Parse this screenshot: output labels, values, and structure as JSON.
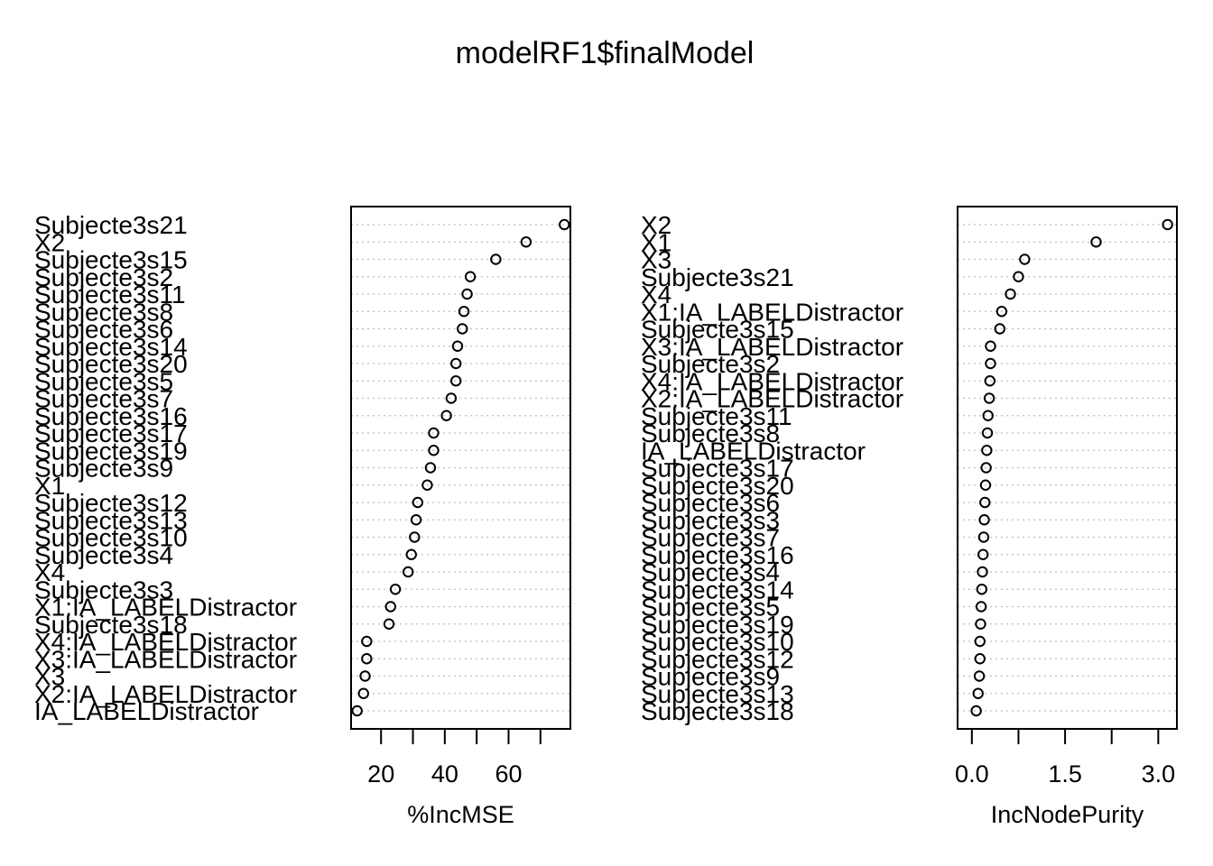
{
  "title": "modelRF1$finalModel",
  "chart_data": [
    {
      "type": "scatter",
      "variant": "dotchart",
      "xlabel": "%IncMSE",
      "xticks": [
        20,
        40,
        60
      ],
      "xlim": [
        10.6,
        79.4
      ],
      "grid": true,
      "points": [
        {
          "label": "Subjecte3s21",
          "value": 77.5
        },
        {
          "label": "X2",
          "value": 65.5
        },
        {
          "label": "Subjecte3s15",
          "value": 56.0
        },
        {
          "label": "Subjecte3s2",
          "value": 48.0
        },
        {
          "label": "Subjecte3s11",
          "value": 47.0
        },
        {
          "label": "Subjecte3s8",
          "value": 46.0
        },
        {
          "label": "Subjecte3s6",
          "value": 45.5
        },
        {
          "label": "Subjecte3s14",
          "value": 44.0
        },
        {
          "label": "Subjecte3s20",
          "value": 43.5
        },
        {
          "label": "Subjecte3s5",
          "value": 43.5
        },
        {
          "label": "Subjecte3s7",
          "value": 42.0
        },
        {
          "label": "Subjecte3s16",
          "value": 40.5
        },
        {
          "label": "Subjecte3s17",
          "value": 36.5
        },
        {
          "label": "Subjecte3s19",
          "value": 36.5
        },
        {
          "label": "Subjecte3s9",
          "value": 35.5
        },
        {
          "label": "X1",
          "value": 34.5
        },
        {
          "label": "Subjecte3s12",
          "value": 31.5
        },
        {
          "label": "Subjecte3s13",
          "value": 31.0
        },
        {
          "label": "Subjecte3s10",
          "value": 30.5
        },
        {
          "label": "Subjecte3s4",
          "value": 29.5
        },
        {
          "label": "X4",
          "value": 28.5
        },
        {
          "label": "Subjecte3s3",
          "value": 24.5
        },
        {
          "label": "X1:IA_LABELDistractor",
          "value": 23.0
        },
        {
          "label": "Subjecte3s18",
          "value": 22.5
        },
        {
          "label": "X4:IA_LABELDistractor",
          "value": 15.5
        },
        {
          "label": "X3:IA_LABELDistractor",
          "value": 15.5
        },
        {
          "label": "X3",
          "value": 15.0
        },
        {
          "label": "X2:IA_LABELDistractor",
          "value": 14.5
        },
        {
          "label": "IA_LABELDistractor",
          "value": 12.5
        }
      ]
    },
    {
      "type": "scatter",
      "variant": "dotchart",
      "xlabel": "IncNodePurity",
      "xticks": [
        "0.0",
        "1.5",
        "3.0"
      ],
      "xtick_values": [
        0,
        1.5,
        3
      ],
      "xlim": [
        -0.23,
        3.3
      ],
      "grid": true,
      "points": [
        {
          "label": "X2",
          "value": 3.15
        },
        {
          "label": "X1",
          "value": 2.0
        },
        {
          "label": "X3",
          "value": 0.85
        },
        {
          "label": "Subjecte3s21",
          "value": 0.75
        },
        {
          "label": "X4",
          "value": 0.62
        },
        {
          "label": "X1:IA_LABELDistractor",
          "value": 0.48
        },
        {
          "label": "Subjecte3s15",
          "value": 0.45
        },
        {
          "label": "X3:IA_LABELDistractor",
          "value": 0.3
        },
        {
          "label": "Subjecte3s2",
          "value": 0.3
        },
        {
          "label": "X4:IA_LABELDistractor",
          "value": 0.29
        },
        {
          "label": "X2:IA_LABELDistractor",
          "value": 0.28
        },
        {
          "label": "Subjecte3s11",
          "value": 0.26
        },
        {
          "label": "Subjecte3s8",
          "value": 0.25
        },
        {
          "label": "IA_LABELDistractor",
          "value": 0.24
        },
        {
          "label": "Subjecte3s17",
          "value": 0.23
        },
        {
          "label": "Subjecte3s20",
          "value": 0.22
        },
        {
          "label": "Subjecte3s6",
          "value": 0.21
        },
        {
          "label": "Subjecte3s3",
          "value": 0.2
        },
        {
          "label": "Subjecte3s7",
          "value": 0.19
        },
        {
          "label": "Subjecte3s16",
          "value": 0.18
        },
        {
          "label": "Subjecte3s4",
          "value": 0.17
        },
        {
          "label": "Subjecte3s14",
          "value": 0.16
        },
        {
          "label": "Subjecte3s5",
          "value": 0.15
        },
        {
          "label": "Subjecte3s19",
          "value": 0.14
        },
        {
          "label": "Subjecte3s10",
          "value": 0.13
        },
        {
          "label": "Subjecte3s12",
          "value": 0.13
        },
        {
          "label": "Subjecte3s9",
          "value": 0.12
        },
        {
          "label": "Subjecte3s13",
          "value": 0.1
        },
        {
          "label": "Subjecte3s18",
          "value": 0.07
        }
      ]
    }
  ]
}
